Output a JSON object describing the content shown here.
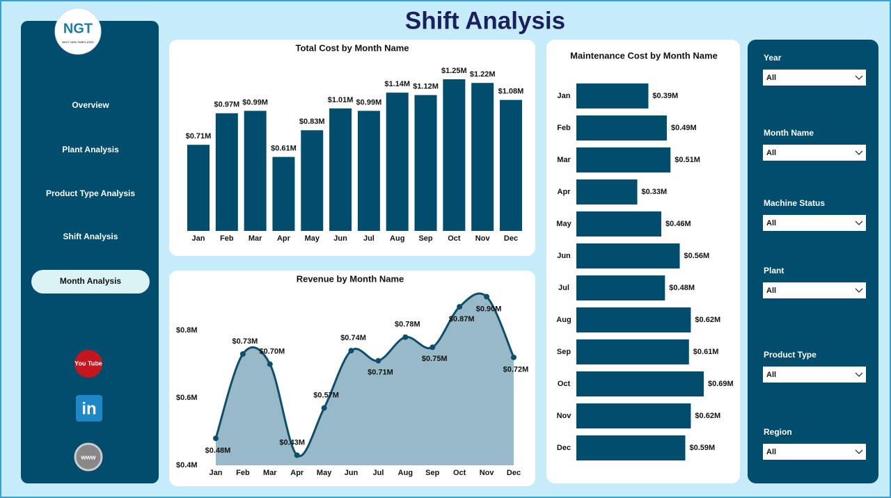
{
  "title": "Shift Analysis",
  "logo": {
    "text": "NGT",
    "subtext": "NEXT GEN TEMPLATES"
  },
  "nav": [
    "Overview",
    "Plant Analysis",
    "Product Type Analysis",
    "Shift Analysis",
    "Month Analysis"
  ],
  "social": {
    "youtube": "You Tube",
    "linkedin": "in",
    "web": "www"
  },
  "filters": [
    {
      "label": "Year",
      "value": "All"
    },
    {
      "label": "Month Name",
      "value": "All"
    },
    {
      "label": "Machine Status",
      "value": "All"
    },
    {
      "label": "Plant",
      "value": "All"
    },
    {
      "label": "Product Type",
      "value": "All"
    },
    {
      "label": "Region",
      "value": "All"
    }
  ],
  "chart_data": [
    {
      "type": "bar",
      "orientation": "vertical",
      "title": "Total Cost by Month Name",
      "color": "#004d6e",
      "categories": [
        "Jan",
        "Feb",
        "Mar",
        "Apr",
        "May",
        "Jun",
        "Jul",
        "Aug",
        "Sep",
        "Oct",
        "Nov",
        "Dec"
      ],
      "values": [
        0.71,
        0.97,
        0.99,
        0.61,
        0.83,
        1.01,
        0.99,
        1.14,
        1.12,
        1.25,
        1.22,
        1.08
      ],
      "value_labels": [
        "$0.71M",
        "$0.97M",
        "$0.99M",
        "$0.61M",
        "$0.83M",
        "$1.01M",
        "$0.99M",
        "$1.14M",
        "$1.12M",
        "$1.25M",
        "$1.22M",
        "$1.08M"
      ]
    },
    {
      "type": "area",
      "title": "Revenue by Month Name",
      "color": "#0d4f6b",
      "fill": "#98b9c7",
      "categories": [
        "Jan",
        "Feb",
        "Mar",
        "Apr",
        "May",
        "Jun",
        "Jul",
        "Aug",
        "Sep",
        "Oct",
        "Nov",
        "Dec"
      ],
      "values": [
        0.48,
        0.73,
        0.7,
        0.43,
        0.57,
        0.74,
        0.71,
        0.78,
        0.75,
        0.87,
        0.9,
        0.72
      ],
      "value_labels": [
        "$0.48M",
        "$0.73M",
        "$0.70M",
        "$0.43M",
        "$0.57M",
        "$0.74M",
        "$0.71M",
        "$0.78M",
        "$0.75M",
        "$0.87M",
        "$0.90M",
        "$0.72M"
      ],
      "ylim": [
        0.4,
        0.93
      ],
      "yticks": [
        {
          "value": 0.4,
          "label": "$0.4M"
        },
        {
          "value": 0.6,
          "label": "$0.6M"
        },
        {
          "value": 0.8,
          "label": "$0.8M"
        }
      ]
    },
    {
      "type": "bar",
      "orientation": "horizontal",
      "title": "Maintenance Cost by Month Name",
      "color": "#004d6e",
      "categories": [
        "Jan",
        "Feb",
        "Mar",
        "Apr",
        "May",
        "Jun",
        "Jul",
        "Aug",
        "Sep",
        "Oct",
        "Nov",
        "Dec"
      ],
      "values": [
        0.39,
        0.49,
        0.51,
        0.33,
        0.46,
        0.56,
        0.48,
        0.62,
        0.61,
        0.69,
        0.62,
        0.59
      ],
      "value_labels": [
        "$0.39M",
        "$0.49M",
        "$0.51M",
        "$0.33M",
        "$0.46M",
        "$0.56M",
        "$0.48M",
        "$0.62M",
        "$0.61M",
        "$0.69M",
        "$0.62M",
        "$0.59M"
      ]
    }
  ]
}
